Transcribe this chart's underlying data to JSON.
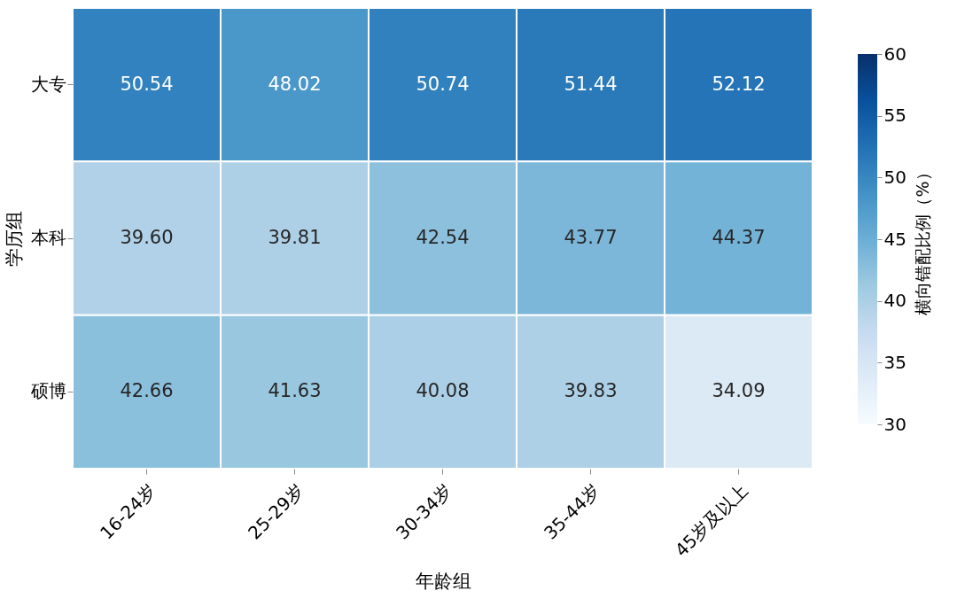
{
  "chart_data": {
    "type": "heatmap",
    "xlabel": "年龄组",
    "ylabel": "学历组",
    "clabel": "横向错配比例（%）",
    "categories": [
      "16-24岁",
      "25-29岁",
      "30-34岁",
      "35-44岁",
      "45岁及以上"
    ],
    "y_categories": [
      "大专",
      "本科",
      "硕博"
    ],
    "cells": [
      [
        50.54,
        48.02,
        50.74,
        51.44,
        52.12
      ],
      [
        39.6,
        39.81,
        42.54,
        43.77,
        44.37
      ],
      [
        42.66,
        41.63,
        40.08,
        39.83,
        34.09
      ]
    ],
    "cell_labels": [
      [
        "50.54",
        "48.02",
        "50.74",
        "51.44",
        "52.12"
      ],
      [
        "39.60",
        "39.81",
        "42.54",
        "43.77",
        "44.37"
      ],
      [
        "42.66",
        "41.63",
        "40.08",
        "39.83",
        "34.09"
      ]
    ],
    "clim": [
      30,
      60
    ],
    "cticks": [
      30,
      35,
      40,
      45,
      50,
      55,
      60
    ],
    "data_labels": true
  }
}
